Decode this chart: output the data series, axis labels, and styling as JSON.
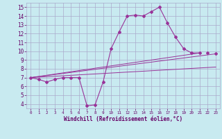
{
  "background_color": "#c8eaf0",
  "grid_color": "#aaaacc",
  "line_color": "#993399",
  "marker_color": "#993399",
  "xlabel": "Windchill (Refroidissement éolien,°C)",
  "xlim": [
    -0.5,
    23.5
  ],
  "ylim": [
    3.5,
    15.5
  ],
  "yticks": [
    4,
    5,
    6,
    7,
    8,
    9,
    10,
    11,
    12,
    13,
    14,
    15
  ],
  "xticks": [
    0,
    1,
    2,
    3,
    4,
    5,
    6,
    7,
    8,
    9,
    10,
    11,
    12,
    13,
    14,
    15,
    16,
    17,
    18,
    19,
    20,
    21,
    22,
    23
  ],
  "series1_x": [
    0,
    1,
    2,
    3,
    4,
    5,
    6,
    7,
    8,
    9,
    10,
    11,
    12,
    13,
    14,
    15,
    16,
    17,
    18,
    19,
    20,
    21
  ],
  "series1_y": [
    7.0,
    6.8,
    6.5,
    6.8,
    7.0,
    7.0,
    7.0,
    3.8,
    3.9,
    6.5,
    10.3,
    12.2,
    14.0,
    14.1,
    14.0,
    14.5,
    15.0,
    13.2,
    11.6,
    10.3,
    9.8,
    9.8
  ],
  "line1_x": [
    0,
    21
  ],
  "line1_y": [
    7.0,
    9.8
  ],
  "line2_x": [
    0,
    23
  ],
  "line2_y": [
    7.0,
    9.7
  ],
  "line3_x": [
    0,
    23
  ],
  "line3_y": [
    7.0,
    8.2
  ],
  "endpoint_x": [
    22,
    23
  ],
  "endpoint_y": [
    9.8,
    9.7
  ]
}
